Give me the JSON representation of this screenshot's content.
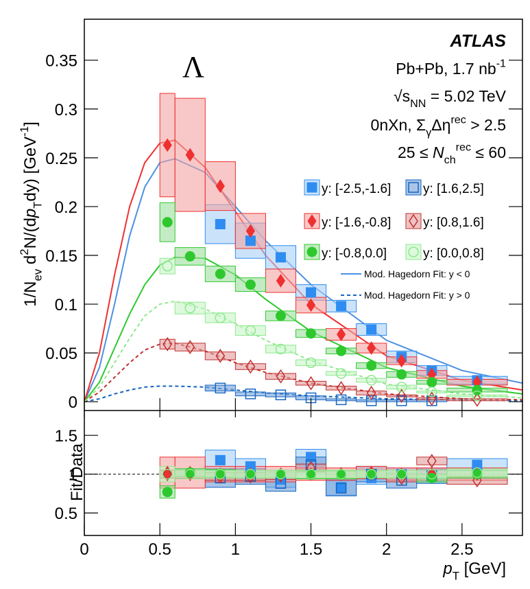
{
  "chart_data": {
    "type": "scatter",
    "particle": "Λ",
    "experiment": "ATLAS",
    "annotations": [
      [
        {
          "text": "Pb+Pb, 1.7 nb"
        },
        {
          "text": "-1",
          "shift": "sup"
        }
      ],
      [
        {
          "text": "√s"
        },
        {
          "text": "NN",
          "shift": "sub"
        },
        {
          "text": " = 5.02 TeV"
        }
      ],
      [
        {
          "text": "0nXn, Σ"
        },
        {
          "text": "γ",
          "shift": "sub"
        },
        {
          "text": "Δη"
        },
        {
          "text": "rec",
          "shift": "sup"
        },
        {
          "text": " > 2.5"
        }
      ],
      [
        {
          "text": "25 ≤ "
        },
        {
          "text": "N",
          "italic": true
        },
        {
          "text": "ch",
          "shift": "sub"
        },
        {
          "text": "rec",
          "shift": "sup"
        },
        {
          "text": " ≤ 60"
        }
      ]
    ],
    "ylabel": [
      {
        "text": "1/N"
      },
      {
        "text": "ev",
        "shift": "sub"
      },
      {
        "text": " d"
      },
      {
        "text": "2",
        "shift": "sup"
      },
      {
        "text": "N/(d"
      },
      {
        "text": "p",
        "italic": true
      },
      {
        "text": "T",
        "shift": "sub"
      },
      {
        "text": "dy) [GeV"
      },
      {
        "text": "-1",
        "shift": "sup"
      },
      {
        "text": "]"
      }
    ],
    "ratio_ylabel": "Fit/Data",
    "xlabel": [
      {
        "text": "p",
        "italic": true
      },
      {
        "text": "T",
        "shift": "sub"
      },
      {
        "text": " [GeV]"
      }
    ],
    "xlim": [
      0,
      2.9
    ],
    "xticks": [
      0,
      0.5,
      1,
      1.5,
      2,
      2.5
    ],
    "ylim": [
      -0.009,
      0.392
    ],
    "yticks": [
      0,
      0.05,
      0.1,
      0.15,
      0.2,
      0.25,
      0.3,
      0.35
    ],
    "ratio_ylim": [
      0.21,
      1.82
    ],
    "ratio_yticks": [
      0.5,
      1,
      1.5
    ],
    "ratio_reference": 1,
    "bins": [
      0.5,
      0.6,
      0.8,
      1.0,
      1.2,
      1.4,
      1.6,
      1.8,
      2.0,
      2.2,
      2.4,
      2.8
    ],
    "x": [
      0.55,
      0.7,
      0.9,
      1.1,
      1.3,
      1.5,
      1.7,
      1.9,
      2.1,
      2.3,
      2.6
    ],
    "series": [
      {
        "name": "y: [-2.5,-1.6]",
        "color": "#2f8cf0",
        "box_color": "#a9d0f7",
        "marker": "square",
        "filled": true,
        "values": [
          null,
          null,
          0.182,
          0.165,
          0.148,
          0.112,
          0.098,
          0.074,
          0.046,
          0.032,
          0.022
        ],
        "sys": [
          null,
          null,
          0.02,
          0.018,
          0.012,
          0.008,
          0.006,
          0.006,
          0.006,
          0.005,
          0.004
        ],
        "ratio": [
          null,
          null,
          1.18,
          1.1,
          0.93,
          1.22,
          0.83,
          0.95,
          1.0,
          0.98,
          1.12
        ],
        "ratio_sys": [
          null,
          null,
          0.13,
          0.1,
          0.1,
          0.1,
          0.1,
          0.08,
          0.08,
          0.08,
          0.08
        ]
      },
      {
        "name": "y: [1.6,2.5]",
        "color": "#1565c0",
        "box_color": "#6f9fd8",
        "marker": "square",
        "filled": false,
        "values": [
          null,
          null,
          0.014,
          0.008,
          0.007,
          0.004,
          0.002,
          0.001,
          0.001,
          0.001,
          null
        ],
        "sys": [
          null,
          null,
          0.003,
          0.002,
          0.002,
          0.002,
          0.001,
          0.001,
          0.001,
          0.001,
          null
        ],
        "ratio": [
          null,
          null,
          0.95,
          0.97,
          0.88,
          1.12,
          0.82,
          1.0,
          0.92,
          0.98,
          null
        ],
        "ratio_sys": [
          null,
          null,
          0.12,
          0.1,
          0.1,
          0.1,
          0.1,
          0.1,
          0.1,
          0.1,
          null
        ]
      },
      {
        "name": "y: [-1.6,-0.8]",
        "color": "#ee3030",
        "box_color": "#f3a3a3",
        "marker": "diamond",
        "filled": true,
        "values": [
          0.263,
          0.253,
          0.221,
          0.175,
          0.124,
          0.099,
          0.069,
          0.055,
          0.042,
          0.028,
          0.02
        ],
        "sys": [
          0.053,
          0.058,
          0.025,
          0.018,
          0.012,
          0.008,
          0.006,
          0.005,
          0.004,
          0.004,
          0.003
        ],
        "ratio": [
          1.02,
          1.02,
          1.0,
          1.0,
          1.0,
          1.0,
          1.0,
          1.02,
          1.0,
          1.0,
          1.0
        ],
        "ratio_sys": [
          0.2,
          0.2,
          0.1,
          0.1,
          0.1,
          0.08,
          0.08,
          0.08,
          0.08,
          0.08,
          0.08
        ]
      },
      {
        "name": "y: [0.8,1.6]",
        "color": "#c03030",
        "box_color": "#e39b9b",
        "marker": "diamond",
        "filled": false,
        "values": [
          0.059,
          0.056,
          0.047,
          0.036,
          0.026,
          0.019,
          0.014,
          0.009,
          0.006,
          0.003,
          0.002
        ],
        "sys": [
          0.005,
          0.004,
          0.004,
          0.003,
          0.003,
          0.002,
          0.002,
          0.002,
          0.001,
          0.001,
          0.001
        ],
        "ratio": [
          1.0,
          1.0,
          0.97,
          0.97,
          0.98,
          1.08,
          1.0,
          1.0,
          0.95,
          1.17,
          0.92
        ],
        "ratio_sys": [
          0.05,
          0.05,
          0.05,
          0.05,
          0.05,
          0.05,
          0.05,
          0.05,
          0.05,
          0.05,
          0.05
        ]
      },
      {
        "name": "y: [-0.8,0.0]",
        "color": "#2ec82e",
        "box_color": "#9de09d",
        "marker": "circle",
        "filled": true,
        "values": [
          0.184,
          0.149,
          0.131,
          0.12,
          0.088,
          0.07,
          0.052,
          0.037,
          0.028,
          0.02,
          0.012
        ],
        "sys": [
          0.02,
          0.009,
          0.008,
          0.007,
          0.005,
          0.004,
          0.003,
          0.003,
          0.003,
          0.002,
          0.002
        ],
        "ratio": [
          0.77,
          1.02,
          1.01,
          1.0,
          1.0,
          0.99,
          0.99,
          1.0,
          1.0,
          0.95,
          1.0
        ],
        "ratio_sys": [
          0.08,
          0.05,
          0.05,
          0.05,
          0.05,
          0.05,
          0.05,
          0.05,
          0.05,
          0.05,
          0.05
        ]
      },
      {
        "name": "y: [0.0,0.8]",
        "color": "#8ee88e",
        "box_color": "#c8f5c8",
        "marker": "circle",
        "filled": false,
        "values": [
          0.139,
          0.096,
          0.086,
          0.073,
          0.054,
          0.04,
          0.029,
          0.022,
          0.015,
          0.01,
          0.006
        ],
        "sys": [
          0.008,
          0.006,
          0.005,
          0.005,
          0.004,
          0.003,
          0.002,
          0.002,
          0.002,
          0.001,
          0.001
        ],
        "ratio": [
          1.0,
          1.0,
          1.0,
          1.0,
          1.0,
          1.0,
          1.0,
          1.0,
          1.0,
          1.0,
          1.02
        ],
        "ratio_sys": [
          0.1,
          0.06,
          0.05,
          0.05,
          0.05,
          0.05,
          0.05,
          0.05,
          0.05,
          0.05,
          0.05
        ]
      }
    ],
    "fit_x": [
      0,
      0.1,
      0.2,
      0.3,
      0.4,
      0.5,
      0.6,
      0.8,
      1.0,
      1.2,
      1.5,
      2.0,
      2.5,
      2.9
    ],
    "fits": [
      {
        "color": "#4a90e2",
        "dashed": false,
        "values": [
          0,
          0.035,
          0.1,
          0.17,
          0.22,
          0.245,
          0.249,
          0.235,
          0.2,
          0.165,
          0.12,
          0.063,
          0.032,
          0.019
        ]
      },
      {
        "color": "#ee3030",
        "dashed": false,
        "values": [
          0,
          0.05,
          0.13,
          0.2,
          0.245,
          0.265,
          0.268,
          0.24,
          0.195,
          0.15,
          0.1,
          0.047,
          0.022,
          0.012
        ]
      },
      {
        "color": "#2ec82e",
        "dashed": false,
        "values": [
          0,
          0.02,
          0.055,
          0.09,
          0.12,
          0.14,
          0.148,
          0.147,
          0.13,
          0.105,
          0.072,
          0.035,
          0.016,
          0.008
        ]
      },
      {
        "color": "#1565c0",
        "dashed": true,
        "values": [
          0,
          0.003,
          0.008,
          0.012,
          0.015,
          0.016,
          0.016,
          0.015,
          0.012,
          0.009,
          0.006,
          0.003,
          0.002,
          0.001
        ]
      },
      {
        "color": "#c03030",
        "dashed": true,
        "values": [
          0,
          0.01,
          0.025,
          0.04,
          0.053,
          0.059,
          0.06,
          0.052,
          0.04,
          0.03,
          0.019,
          0.008,
          0.003,
          0.002
        ]
      },
      {
        "color": "#8ee88e",
        "dashed": true,
        "values": [
          0,
          0.015,
          0.04,
          0.065,
          0.088,
          0.1,
          0.103,
          0.095,
          0.08,
          0.063,
          0.042,
          0.018,
          0.008,
          0.004
        ]
      }
    ],
    "fit_legend": [
      {
        "label": "Mod. Hagedorn Fit: y < 0",
        "color": "#4a90e2",
        "dashed": false
      },
      {
        "label": "Mod. Hagedorn Fit: y > 0",
        "color": "#1565c0",
        "dashed": true
      }
    ]
  }
}
